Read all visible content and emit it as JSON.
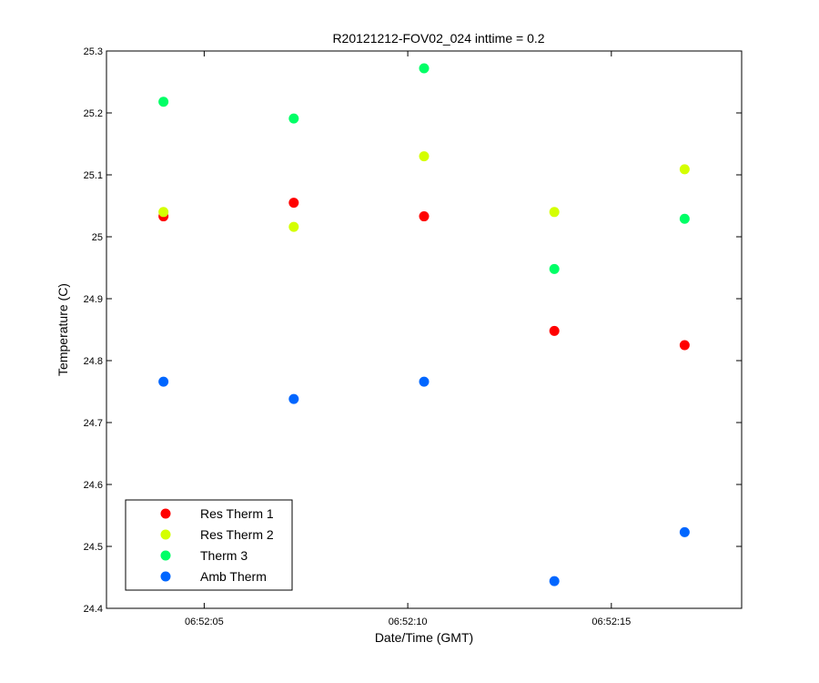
{
  "chart_data": {
    "type": "scatter",
    "title": "R20121212-FOV02_024 inttime = 0.2",
    "xlabel": "Date/Time (GMT)",
    "ylabel": "Temperature (C)",
    "x": [
      "06:52:04.0",
      "06:52:07.2",
      "06:52:10.4",
      "06:52:13.6",
      "06:52:16.8"
    ],
    "x_ticks": [
      "06:52:05",
      "06:52:10",
      "06:52:15"
    ],
    "xlim": [
      "06:52:02.6",
      "06:52:18.2"
    ],
    "ylim": [
      24.4,
      25.3
    ],
    "y_ticks": [
      "24.4",
      "24.5",
      "24.6",
      "24.7",
      "24.8",
      "24.9",
      "25",
      "25.1",
      "25.2",
      "25.3"
    ],
    "grid": false,
    "legend_position": "bottom-left",
    "series": [
      {
        "name": "Res Therm 1",
        "color": "#ff0000",
        "values": [
          25.033,
          25.055,
          25.033,
          24.848,
          24.825
        ]
      },
      {
        "name": "Res Therm 2",
        "color": "#d4ff00",
        "values": [
          25.04,
          25.016,
          25.13,
          25.04,
          25.109
        ]
      },
      {
        "name": "Therm 3",
        "color": "#00ff66",
        "values": [
          25.218,
          25.191,
          25.272,
          24.948,
          25.029
        ]
      },
      {
        "name": "Amb Therm",
        "color": "#0066ff",
        "values": [
          24.766,
          24.738,
          24.766,
          24.444,
          24.523
        ]
      }
    ]
  }
}
